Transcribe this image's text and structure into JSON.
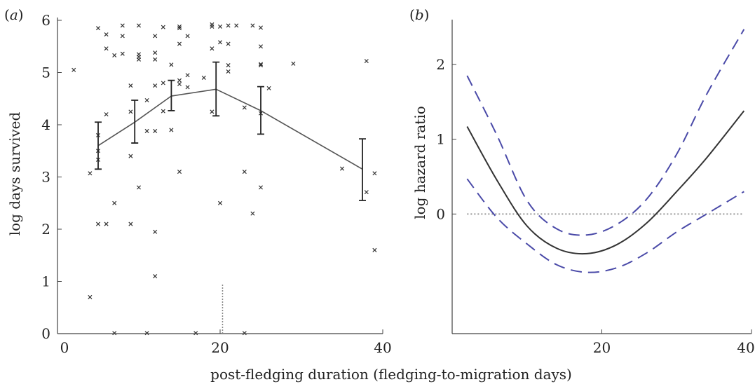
{
  "chart_data": [
    {
      "type": "scatter",
      "panel_label": "(a)",
      "panel_label_parts": [
        "(",
        "a",
        ")"
      ],
      "ylabel": "log days survived",
      "xlim": [
        0,
        40
      ],
      "ylim": [
        0,
        6
      ],
      "x_ticks": [
        0,
        20,
        40
      ],
      "y_ticks": [
        0,
        1,
        2,
        3,
        4,
        5,
        6
      ],
      "colors": {
        "axis": "#444444",
        "marker": "#333333",
        "mean_line": "#555555",
        "reference": "#888888"
      },
      "points": [
        [
          2,
          5.05
        ],
        [
          4,
          0.7
        ],
        [
          4,
          3.07
        ],
        [
          5,
          5.85
        ],
        [
          5,
          3.8
        ],
        [
          5,
          3.5
        ],
        [
          5,
          3.33
        ],
        [
          5,
          2.1
        ],
        [
          6,
          5.73
        ],
        [
          6,
          5.46
        ],
        [
          6,
          4.2
        ],
        [
          6,
          2.1
        ],
        [
          7,
          5.33
        ],
        [
          7,
          2.5
        ],
        [
          7,
          0.01
        ],
        [
          8,
          5.9
        ],
        [
          8,
          5.7
        ],
        [
          8,
          5.36
        ],
        [
          9,
          3.4
        ],
        [
          9,
          2.1
        ],
        [
          9,
          4.25
        ],
        [
          9,
          4.75
        ],
        [
          10,
          5.9
        ],
        [
          10,
          5.35
        ],
        [
          10,
          5.3
        ],
        [
          10,
          5.25
        ],
        [
          10,
          2.8
        ],
        [
          11,
          4.47
        ],
        [
          11,
          3.88
        ],
        [
          11,
          0.01
        ],
        [
          12,
          5.7
        ],
        [
          12,
          5.38
        ],
        [
          12,
          5.25
        ],
        [
          12,
          4.75
        ],
        [
          12,
          3.88
        ],
        [
          12,
          1.95
        ],
        [
          12,
          1.1
        ],
        [
          13,
          5.87
        ],
        [
          13,
          4.8
        ],
        [
          13,
          4.26
        ],
        [
          14,
          5.15
        ],
        [
          14,
          3.9
        ],
        [
          15,
          5.88
        ],
        [
          15,
          5.85
        ],
        [
          15,
          5.55
        ],
        [
          15,
          4.85
        ],
        [
          15,
          4.78
        ],
        [
          15,
          3.1
        ],
        [
          16,
          5.7
        ],
        [
          16,
          4.95
        ],
        [
          16,
          4.72
        ],
        [
          17,
          0.01
        ],
        [
          18,
          4.9
        ],
        [
          19,
          5.92
        ],
        [
          19,
          5.88
        ],
        [
          19,
          5.46
        ],
        [
          19,
          4.25
        ],
        [
          20,
          5.58
        ],
        [
          20,
          5.88
        ],
        [
          20,
          2.5
        ],
        [
          21,
          5.9
        ],
        [
          21,
          5.55
        ],
        [
          21,
          5.14
        ],
        [
          21,
          5.02
        ],
        [
          22,
          5.9
        ],
        [
          23,
          4.33
        ],
        [
          23,
          3.1
        ],
        [
          23,
          0.01
        ],
        [
          24,
          5.9
        ],
        [
          24,
          2.3
        ],
        [
          25,
          5.86
        ],
        [
          25,
          5.5
        ],
        [
          25,
          5.16
        ],
        [
          25,
          5.14
        ],
        [
          25,
          4.22
        ],
        [
          25,
          2.8
        ],
        [
          26,
          4.7
        ],
        [
          29,
          5.17
        ],
        [
          35,
          3.16
        ],
        [
          38,
          5.22
        ],
        [
          38,
          2.71
        ],
        [
          39,
          3.07
        ],
        [
          39,
          1.6
        ]
      ],
      "mean_line": {
        "x": [
          5,
          9.5,
          14,
          19.5,
          25,
          37.5
        ],
        "y": [
          3.6,
          4.05,
          4.55,
          4.68,
          4.27,
          3.15
        ],
        "error_low": [
          3.15,
          3.65,
          4.27,
          4.17,
          3.82,
          2.55
        ],
        "error_high": [
          4.05,
          4.47,
          4.85,
          5.2,
          4.73,
          3.73
        ]
      },
      "reference_x": 20.3,
      "reference_y_range": [
        0,
        0.95
      ]
    },
    {
      "type": "line",
      "panel_label": "(b)",
      "panel_label_parts": [
        "(",
        "b",
        ")"
      ],
      "ylabel": "log hazard ratio",
      "xlim": [
        0,
        40
      ],
      "ylim": [
        -1.6,
        2.6
      ],
      "x_ticks": [
        20,
        40
      ],
      "y_ticks": [
        0,
        1,
        2
      ],
      "colors": {
        "axis": "#444444",
        "estimate": "#333333",
        "confidence": "#4a4aa8",
        "zero_line": "#999999"
      },
      "x": [
        2,
        6,
        10,
        14,
        18,
        22,
        26,
        30,
        34,
        39
      ],
      "series": [
        {
          "style": "solid",
          "values": [
            1.17,
            0.45,
            -0.16,
            -0.46,
            -0.53,
            -0.41,
            -0.12,
            0.3,
            0.75,
            1.38
          ]
        },
        {
          "style": "dashed",
          "values": [
            1.85,
            1.05,
            0.18,
            -0.2,
            -0.28,
            -0.14,
            0.2,
            0.8,
            1.6,
            2.47
          ]
        },
        {
          "style": "dashed",
          "values": [
            0.47,
            -0.05,
            -0.4,
            -0.68,
            -0.78,
            -0.72,
            -0.52,
            -0.24,
            0.0,
            0.3
          ]
        }
      ],
      "reference_y": 0
    }
  ],
  "shared_xlabel": "post-fledging duration (fledging-to-migration days)"
}
